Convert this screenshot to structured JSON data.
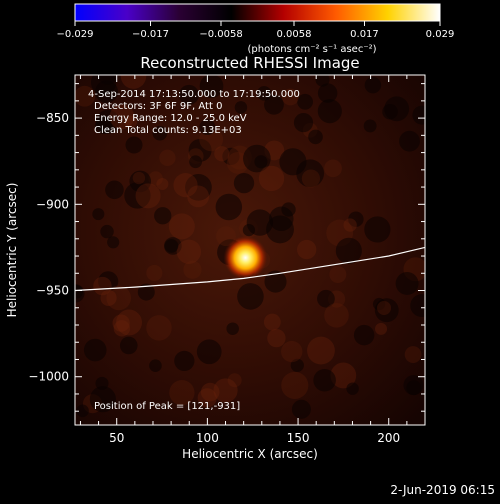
{
  "colorbar": {
    "tick_labels": [
      "−0.029",
      "−0.017",
      "−0.0058",
      "0.0058",
      "0.017",
      "0.029"
    ],
    "tick_values": [
      -0.029,
      -0.017,
      -0.0058,
      0.0058,
      0.017,
      0.029
    ],
    "range": [
      -0.029,
      0.029
    ],
    "units_label": "(photons cm⁻² s⁻¹ asec⁻²)",
    "stops": [
      "#0000ff",
      "#4a00c8",
      "#2a0033",
      "#000000",
      "#b40000",
      "#ff5a00",
      "#ffd200",
      "#ffffff"
    ]
  },
  "chart_data": {
    "type": "heatmap",
    "title": "Reconstructed RHESSI Image",
    "xlabel": "Heliocentric X (arcsec)",
    "ylabel": "Heliocentric Y (arcsec)",
    "xlim": [
      27,
      220
    ],
    "ylim": [
      -1028,
      -825
    ],
    "x_ticks": [
      50,
      100,
      150,
      200
    ],
    "y_ticks": [
      -850,
      -900,
      -950,
      -1000
    ],
    "x_tick_labels": [
      "50",
      "100",
      "150",
      "200"
    ],
    "y_tick_labels": [
      "−850",
      "−900",
      "−950",
      "−1000"
    ],
    "peak": {
      "x": 121,
      "y": -931,
      "label": "Position of Peak = [121,-931]"
    },
    "limb": {
      "x": [
        27,
        60,
        100,
        120,
        140,
        170,
        200,
        220
      ],
      "y": [
        -950,
        -948,
        -945,
        -943,
        -940,
        -935,
        -930,
        -925
      ]
    },
    "info_lines": [
      " 4-Sep-2014 17:13:50.000 to 17:19:50.000",
      "Detectors: 3F 6F 9F, Att 0",
      "Energy Range: 12.0 - 25.0 keV",
      "Clean    Total counts: 9.13E+03"
    ]
  },
  "timestamp": "2-Jun-2019 06:15"
}
